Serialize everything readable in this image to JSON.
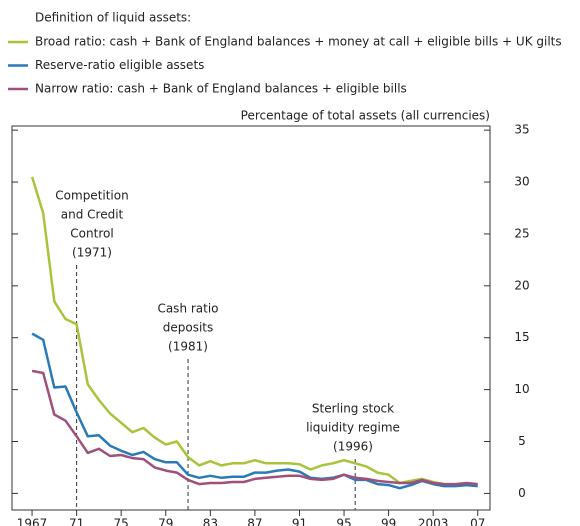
{
  "chart_data": {
    "type": "line",
    "legend_title": "Definition of liquid assets:",
    "y_axis_label": "Percentage of total assets (all currencies)",
    "x": [
      1967,
      1968,
      1969,
      1970,
      1971,
      1972,
      1973,
      1974,
      1975,
      1976,
      1977,
      1978,
      1979,
      1980,
      1981,
      1982,
      1983,
      1984,
      1985,
      1986,
      1987,
      1988,
      1989,
      1990,
      1991,
      1992,
      1993,
      1994,
      1995,
      1996,
      1997,
      1998,
      1999,
      2000,
      2001,
      2002,
      2003,
      2004,
      2005,
      2006,
      2007
    ],
    "series": [
      {
        "name": "Broad ratio:  cash + Bank of England balances + money at call + eligible bills + UK gilts",
        "color": "#a8c43a",
        "values": [
          30.5,
          27,
          18.5,
          16.8,
          16.3,
          10.5,
          9,
          7.7,
          6.8,
          5.9,
          6.3,
          5.4,
          4.7,
          5,
          3.5,
          2.7,
          3.1,
          2.7,
          2.9,
          2.9,
          3.2,
          2.9,
          2.9,
          2.9,
          2.8,
          2.3,
          2.7,
          2.9,
          3.2,
          2.9,
          2.6,
          2,
          1.8,
          1,
          1.2,
          1.4,
          1.1,
          0.9,
          0.8,
          0.9,
          0.8
        ]
      },
      {
        "name": "Reserve-ratio eligible assets",
        "color": "#2a7ab8",
        "values": [
          15.4,
          14.8,
          10.2,
          10.3,
          7.8,
          5.5,
          5.6,
          4.6,
          4.1,
          3.7,
          4,
          3.3,
          3,
          3,
          1.8,
          1.5,
          1.7,
          1.5,
          1.6,
          1.6,
          2,
          2,
          2.2,
          2.3,
          2.1,
          1.5,
          1.4,
          1.5,
          1.8,
          1.3,
          1.3,
          0.9,
          0.8,
          0.5,
          0.8,
          1.2,
          0.9,
          0.7,
          0.7,
          0.8,
          0.7
        ]
      },
      {
        "name": "Narrow ratio:  cash + Bank of England balances + eligible bills",
        "color": "#a0507a",
        "values": [
          11.8,
          11.6,
          7.6,
          7,
          5.5,
          3.9,
          4.3,
          3.6,
          3.7,
          3.4,
          3.3,
          2.5,
          2.2,
          2,
          1.3,
          0.9,
          1,
          1,
          1.1,
          1.1,
          1.4,
          1.5,
          1.6,
          1.7,
          1.7,
          1.4,
          1.3,
          1.4,
          1.8,
          1.5,
          1.4,
          1.2,
          1.1,
          1,
          1,
          1.3,
          1,
          0.9,
          0.9,
          1,
          0.9
        ]
      }
    ],
    "xlim": [
      1965.2,
      2008.1
    ],
    "xticks": [
      1967,
      {
        "value": 1971,
        "label": "71"
      },
      {
        "value": 1975,
        "label": "75"
      },
      {
        "value": 1979,
        "label": "79"
      },
      {
        "value": 1983,
        "label": "83"
      },
      {
        "value": 1987,
        "label": "87"
      },
      {
        "value": 1991,
        "label": "91"
      },
      {
        "value": 1995,
        "label": "95"
      },
      {
        "value": 1999,
        "label": "99"
      },
      {
        "value": 2003,
        "label": "2003"
      },
      {
        "value": 2007,
        "label": "07"
      }
    ],
    "ylim": [
      -1.6,
      35.4
    ],
    "yticks": [
      0,
      5,
      10,
      15,
      20,
      25,
      30,
      35
    ],
    "annotations": [
      {
        "lines": [
          "Competition",
          "and Credit",
          "Control",
          "(1971)"
        ],
        "x": 1971
      },
      {
        "lines": [
          "Cash ratio",
          "deposits",
          "(1981)"
        ],
        "x": 1981
      },
      {
        "lines": [
          "Sterling stock",
          "liquidity regime",
          "(1996)"
        ],
        "x": 1996
      }
    ]
  }
}
